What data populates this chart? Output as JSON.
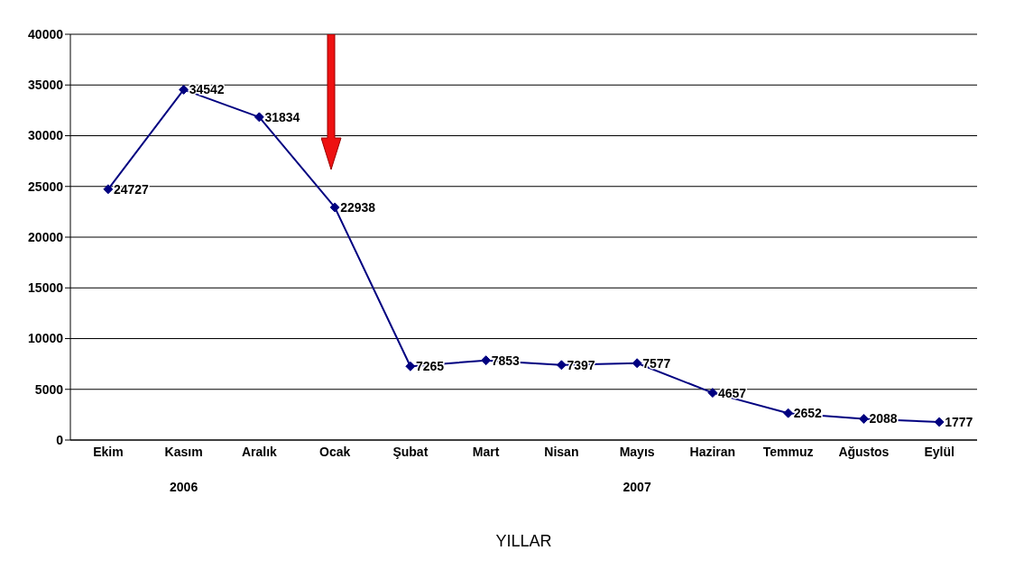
{
  "chart_data": {
    "type": "line",
    "xlabel": "YILLAR",
    "categories": [
      "Ekim",
      "Kasım",
      "Aralık",
      "Ocak",
      "Şubat",
      "Mart",
      "Nisan",
      "Mayıs",
      "Haziran",
      "Temmuz",
      "Ağustos",
      "Eylül"
    ],
    "series": [
      {
        "color": "#000080",
        "values": [
          24727,
          34542,
          31834,
          22938,
          7265,
          7853,
          7397,
          7577,
          4657,
          2652,
          2088,
          1777
        ]
      }
    ],
    "ylim": [
      0,
      40000
    ],
    "yticks": [
      0,
      5000,
      10000,
      15000,
      20000,
      25000,
      30000,
      35000,
      40000
    ],
    "grid": "y",
    "marker": "diamond",
    "line_style": "solid",
    "data_labels": true,
    "legend": false,
    "annotations": [
      "2006",
      "2007"
    ]
  }
}
